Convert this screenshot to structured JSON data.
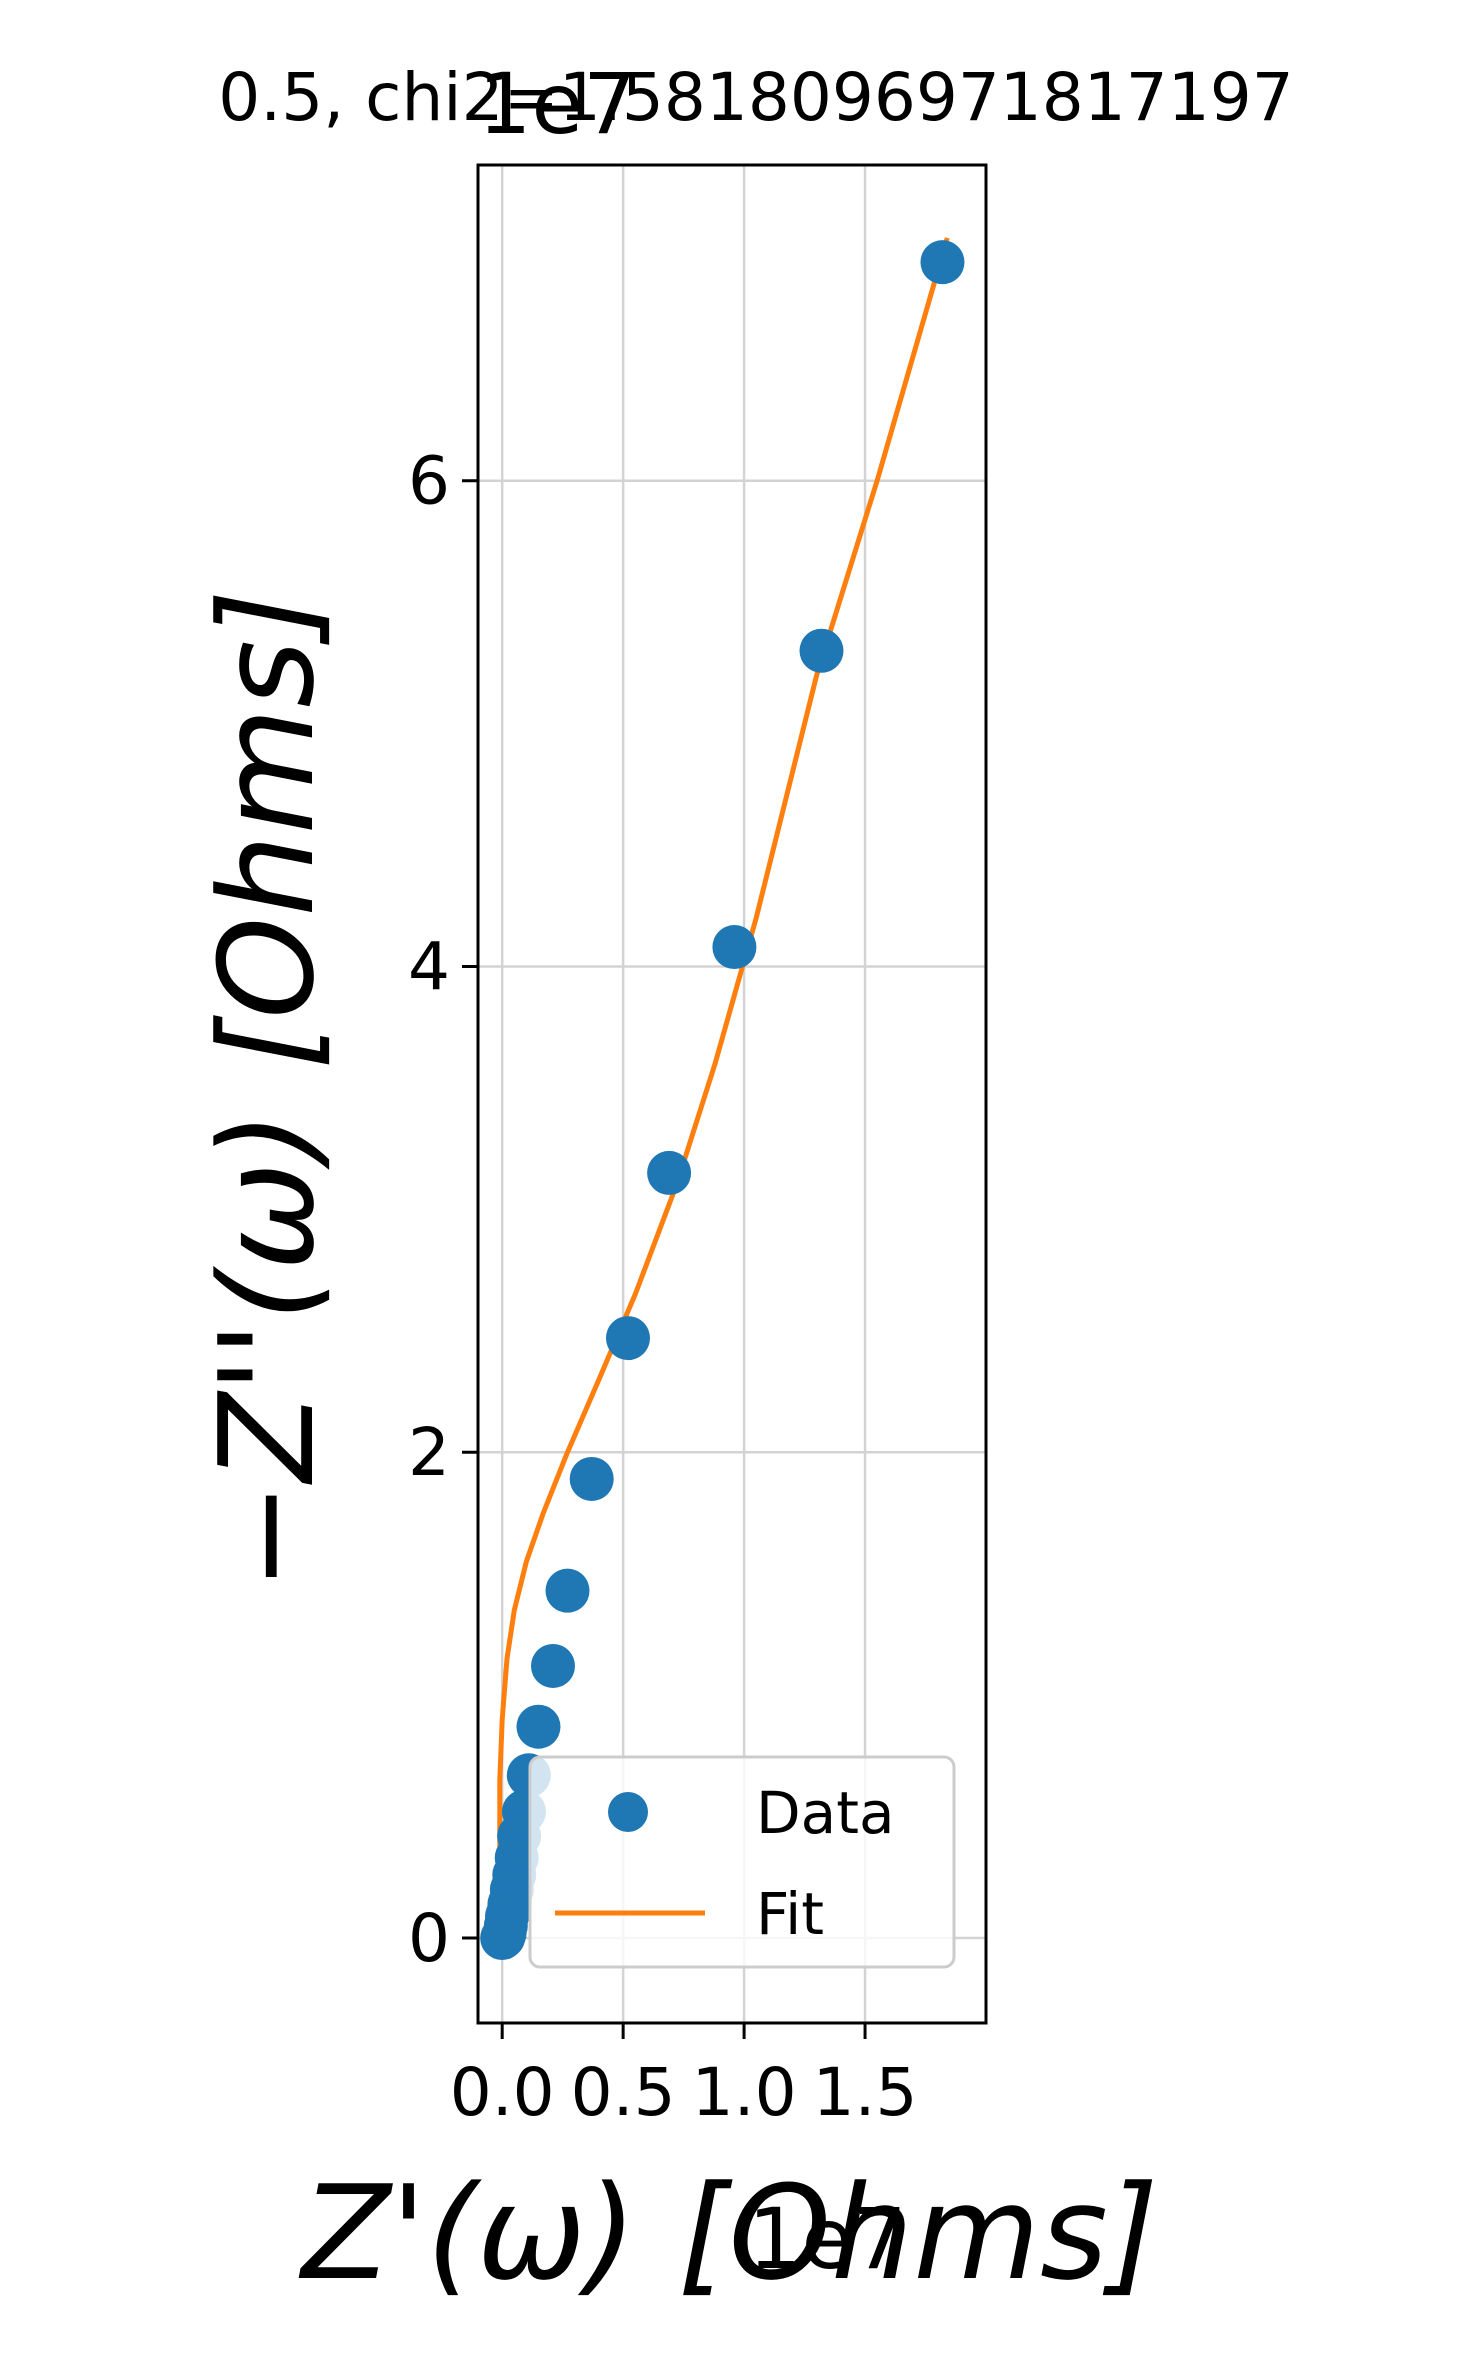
{
  "chart_data": {
    "type": "scatter",
    "title": "0.5, chi2=1.5818096971817197",
    "xlabel": "Z'(ω) [Ohms]",
    "ylabel": "−Z''(ω) [Ohms]",
    "x_offset_label": "1e7",
    "y_offset_label": "1e7",
    "xlim": [
      -0.1,
      2.0
    ],
    "ylim": [
      -0.35,
      7.3
    ],
    "x_ticks": [
      0.0,
      0.5,
      1.0,
      1.5
    ],
    "x_tick_labels": [
      "0.0",
      "0.5",
      "1.0",
      "1.5"
    ],
    "y_ticks": [
      0,
      2,
      4,
      6
    ],
    "y_tick_labels": [
      "0",
      "2",
      "4",
      "6"
    ],
    "grid": true,
    "legend_position": "lower right",
    "colors": {
      "data": "#1f77b4",
      "fit": "#ff7f0e",
      "grid": "#d3d3d3"
    },
    "series": [
      {
        "name": "Data",
        "kind": "scatter",
        "x": [
          1.82,
          1.32,
          0.96,
          0.69,
          0.52,
          0.37,
          0.27,
          0.21,
          0.15,
          0.11,
          0.09,
          0.07,
          0.06,
          0.05,
          0.04,
          0.03,
          0.02,
          0.015,
          0.01,
          0.005,
          0.0
        ],
        "y": [
          6.9,
          5.3,
          4.08,
          3.15,
          2.47,
          1.89,
          1.43,
          1.12,
          0.87,
          0.67,
          0.52,
          0.42,
          0.33,
          0.26,
          0.2,
          0.14,
          0.09,
          0.05,
          0.02,
          0.005,
          0.0
        ]
      },
      {
        "name": "Fit",
        "kind": "line",
        "x": [
          0.0,
          -0.01,
          -0.01,
          0.0,
          0.02,
          0.05,
          0.1,
          0.17,
          0.27,
          0.4,
          0.55,
          0.72,
          0.88,
          1.05,
          1.3,
          1.55,
          1.84
        ],
        "y": [
          0.0,
          0.3,
          0.65,
          0.9,
          1.15,
          1.35,
          1.55,
          1.75,
          2.0,
          2.3,
          2.65,
          3.1,
          3.6,
          4.2,
          5.2,
          6.0,
          7.0
        ]
      }
    ]
  }
}
